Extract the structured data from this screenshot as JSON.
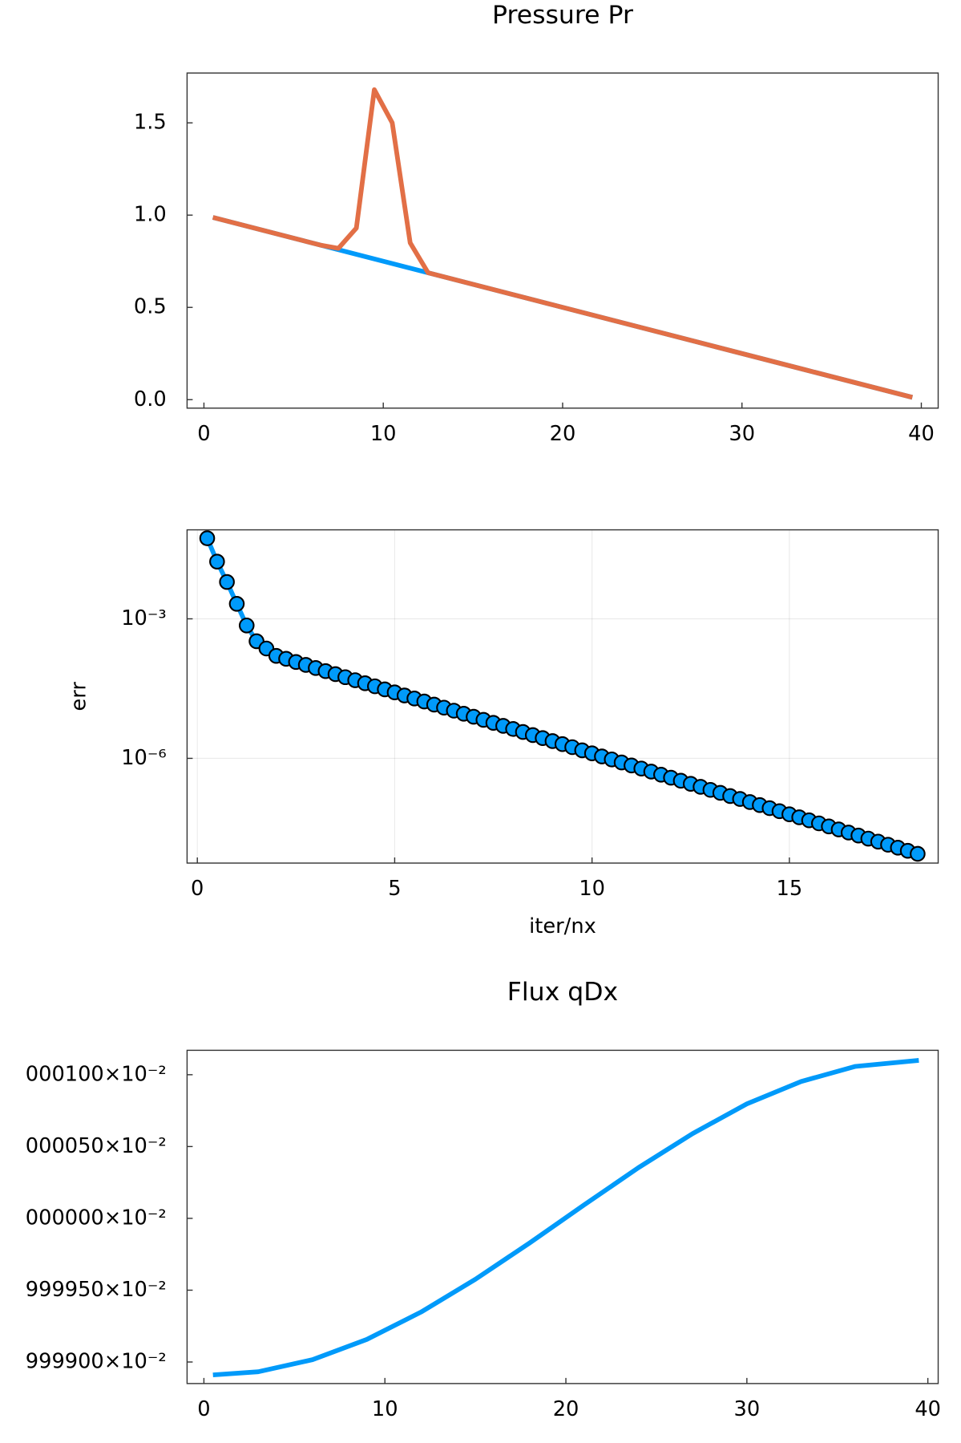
{
  "chart_data": [
    {
      "type": "line",
      "title": "Pressure Pr",
      "x": [
        0.5,
        1.5,
        2.5,
        3.5,
        4.5,
        5.5,
        6.5,
        7.5,
        8.5,
        9.5,
        10.5,
        11.5,
        12.5,
        13.5,
        14.5,
        15.5,
        16.5,
        17.5,
        18.5,
        19.5,
        20.5,
        21.5,
        22.5,
        23.5,
        24.5,
        25.5,
        26.5,
        27.5,
        28.5,
        29.5,
        30.5,
        31.5,
        32.5,
        33.5,
        34.5,
        35.5,
        36.5,
        37.5,
        38.5,
        39.5
      ],
      "series": [
        {
          "color": "#009AFA",
          "values": [
            0.9875,
            0.9625,
            0.9375,
            0.9125,
            0.8875,
            0.8625,
            0.8375,
            0.8125,
            0.7875,
            0.7625,
            0.7375,
            0.7125,
            0.6875,
            0.6625,
            0.6375,
            0.6125,
            0.5875,
            0.5625,
            0.5375,
            0.5125,
            0.4875,
            0.4625,
            0.4375,
            0.4125,
            0.3875,
            0.3625,
            0.3375,
            0.3125,
            0.2875,
            0.2625,
            0.2375,
            0.2125,
            0.1875,
            0.1625,
            0.1375,
            0.1125,
            0.0875,
            0.0625,
            0.0375,
            0.0125
          ]
        },
        {
          "color": "#E26F46",
          "values": [
            0.9875,
            0.9625,
            0.9375,
            0.9125,
            0.8875,
            0.8625,
            0.8375,
            0.82,
            0.93,
            1.68,
            1.5,
            0.85,
            0.6875,
            0.6625,
            0.6375,
            0.6125,
            0.5875,
            0.5625,
            0.5375,
            0.5125,
            0.4875,
            0.4625,
            0.4375,
            0.4125,
            0.3875,
            0.3625,
            0.3375,
            0.3125,
            0.2875,
            0.2625,
            0.2375,
            0.2125,
            0.1875,
            0.1625,
            0.1375,
            0.1125,
            0.0875,
            0.0625,
            0.0375,
            0.0125
          ]
        }
      ],
      "xlim": [
        -0.94,
        40.94
      ],
      "xticks": [
        0,
        10,
        20,
        30,
        40
      ],
      "ylim": [
        -0.046,
        1.77
      ],
      "yticks": [
        {
          "value": 0,
          "label": "0.0"
        },
        0.5,
        {
          "value": 1,
          "label": "1.0"
        },
        1.5
      ],
      "grid": false
    },
    {
      "type": "line",
      "markers": true,
      "xlabel": "iter/nx",
      "ylabel": "err",
      "yscale": "log",
      "x": [
        0.25,
        0.5,
        0.75,
        1,
        1.25,
        1.5,
        1.75,
        2,
        2.25,
        2.5,
        2.75,
        3,
        3.25,
        3.5,
        3.75,
        4,
        4.25,
        4.5,
        4.75,
        5,
        5.25,
        5.5,
        5.75,
        6,
        6.25,
        6.5,
        6.75,
        7,
        7.25,
        7.5,
        7.75,
        8,
        8.25,
        8.5,
        8.75,
        9,
        9.25,
        9.5,
        9.75,
        10,
        10.25,
        10.5,
        10.75,
        11,
        11.25,
        11.5,
        11.75,
        12,
        12.25,
        12.5,
        12.75,
        13,
        13.25,
        13.5,
        13.75,
        14,
        14.25,
        14.5,
        14.75,
        15,
        15.25,
        15.5,
        15.75,
        16,
        16.25,
        16.5,
        16.75,
        17,
        17.25,
        17.5,
        17.75,
        18,
        18.25
      ],
      "series": [
        {
          "color": "#009AFA",
          "values": [
            0.054,
            0.017,
            0.0062,
            0.0021,
            0.00072,
            0.00033,
            0.00023,
            0.00016,
            0.000138,
            0.000118,
            0.000102,
            8.75e-05,
            7.52e-05,
            6.47e-05,
            5.56e-05,
            4.79e-05,
            4.12e-05,
            3.54e-05,
            3.04e-05,
            2.62e-05,
            2.25e-05,
            1.94e-05,
            1.67e-05,
            1.43e-05,
            1.23e-05,
            1.06e-05,
            9.12e-06,
            7.84e-06,
            6.74e-06,
            5.8e-06,
            4.99e-06,
            4.29e-06,
            3.69e-06,
            3.17e-06,
            2.73e-06,
            2.35e-06,
            2.02e-06,
            1.74e-06,
            1.49e-06,
            1.28e-06,
            1.1e-06,
            9.49e-07,
            8.16e-07,
            7.02e-07,
            6.04e-07,
            5.19e-07,
            4.46e-07,
            3.84e-07,
            3.3e-07,
            2.84e-07,
            2.44e-07,
            2.1e-07,
            1.81e-07,
            1.55e-07,
            1.34e-07,
            1.15e-07,
            9.88e-08,
            8.5e-08,
            7.31e-08,
            6.28e-08,
            5.4e-08,
            4.65e-08,
            4e-08,
            3.44e-08,
            2.96e-08,
            2.54e-08,
            2.19e-08,
            1.88e-08,
            1.62e-08,
            1.39e-08,
            1.2e-08,
            1.03e-08,
            8.85e-09
          ]
        }
      ],
      "xlim": [
        -0.26,
        18.77
      ],
      "xticks": [
        0,
        5,
        10,
        15
      ],
      "ylim": [
        5.6e-09,
        0.0819
      ],
      "yticks": [
        {
          "value": 0.001,
          "label": "10⁻³"
        },
        {
          "value": 1e-06,
          "label": "10⁻⁶"
        }
      ],
      "grid": true
    },
    {
      "type": "line",
      "title": "Flux qDx",
      "x": [
        0.5,
        3,
        6,
        9,
        12,
        15,
        18,
        21,
        24,
        27,
        30,
        33,
        36,
        39.5
      ],
      "series": [
        {
          "color": "#009AFA",
          "values": [
            0.00999891,
            0.009998932,
            0.009999016,
            0.009999157,
            0.009999348,
            0.009999576,
            0.009999829,
            0.010000093,
            0.010000352,
            0.01000059,
            0.010000797,
            0.010000953,
            0.010001058,
            0.0100011
          ]
        }
      ],
      "xlim": [
        -0.93,
        40.57
      ],
      "xticks": [
        0,
        10,
        20,
        30,
        40
      ],
      "ylim": [
        0.00999885,
        0.01000117
      ],
      "yticks": [
        {
          "value": 0.009999,
          "label": "999900×10⁻²"
        },
        {
          "value": 0.0099995,
          "label": "999950×10⁻²"
        },
        {
          "value": 0.01,
          "label": "000000×10⁻²"
        },
        {
          "value": 0.0100005,
          "label": "000050×10⁻²"
        },
        {
          "value": 0.010001,
          "label": "000100×10⁻²"
        }
      ],
      "grid": false
    }
  ]
}
